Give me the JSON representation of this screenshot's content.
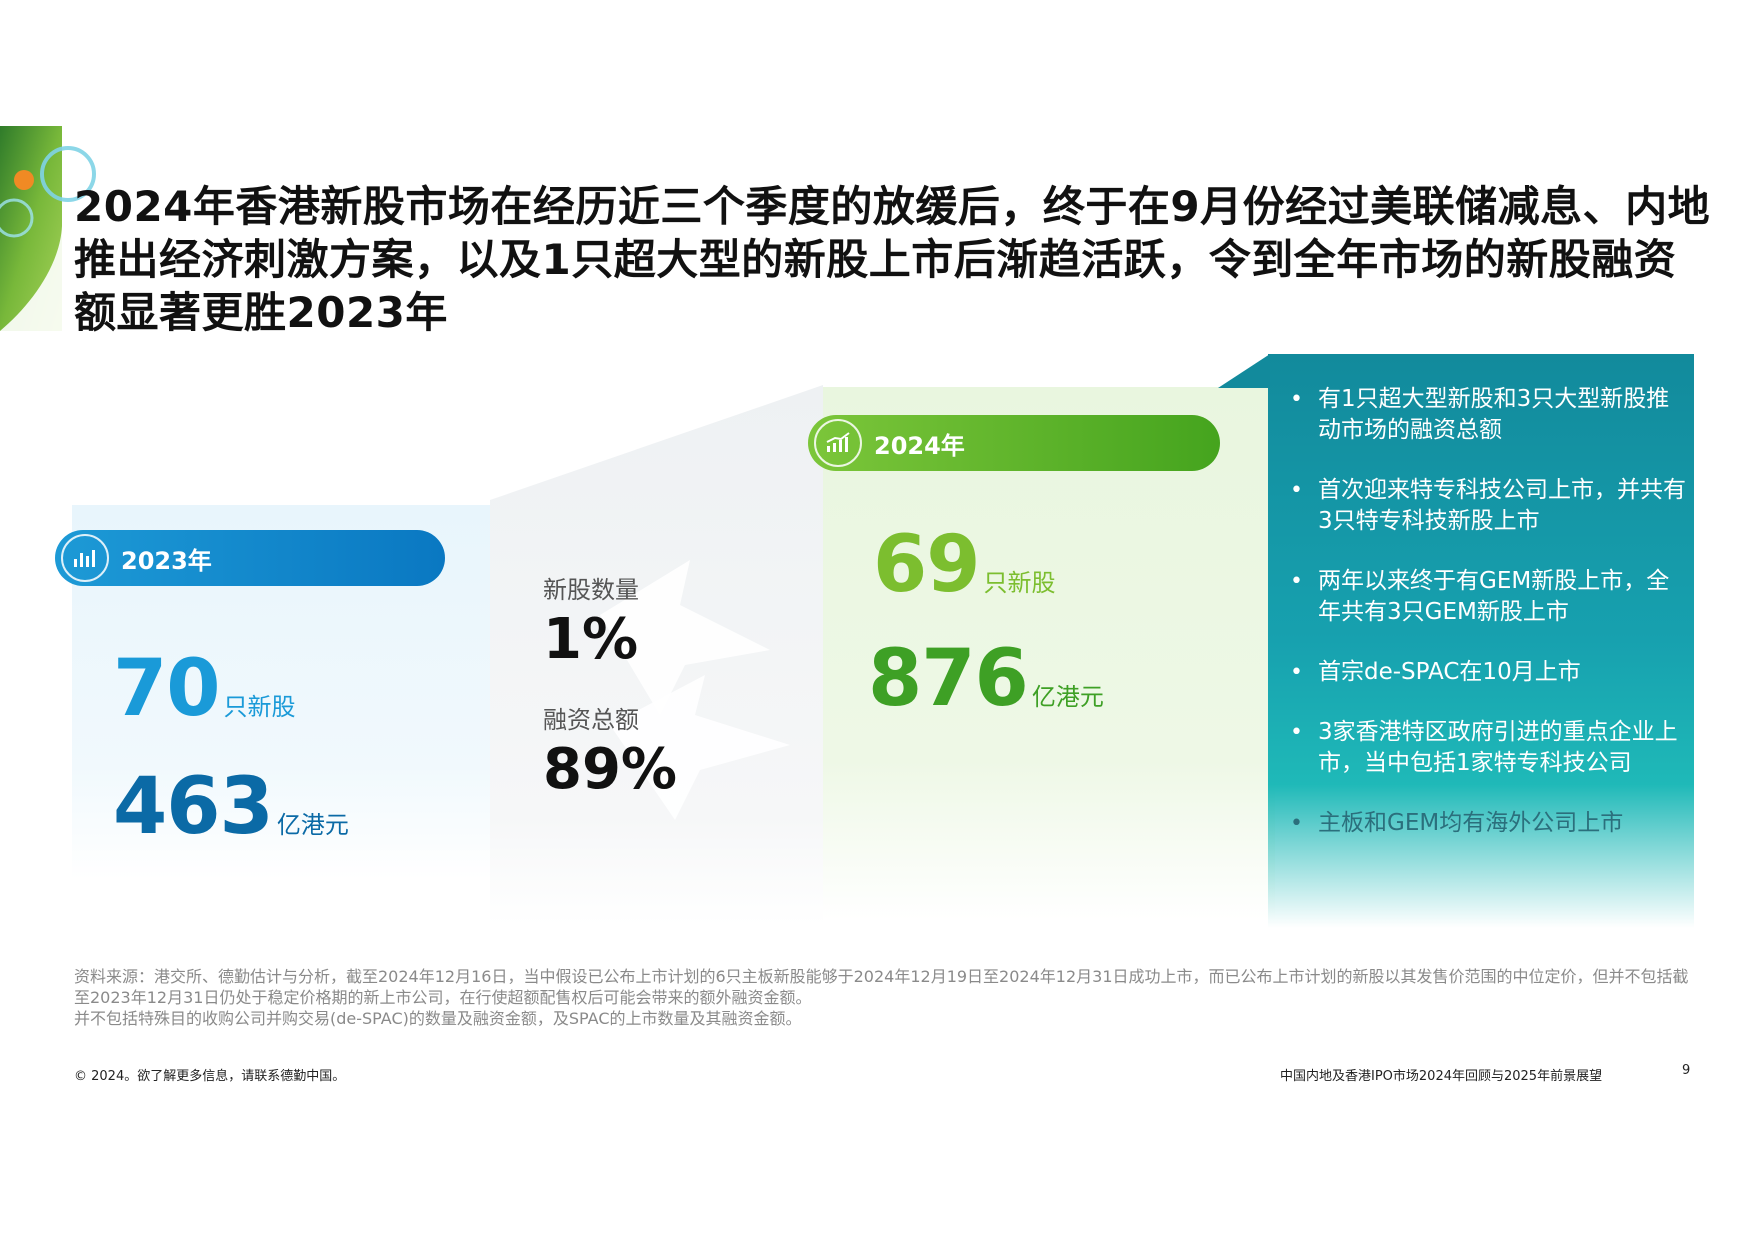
{
  "title": "2024年香港新股市场在经历近三个季度的放缓后，终于在9月份经过美联储减息、内地推出经济刺激方案，以及1只超大型的新股上市后渐趋活跃，令到全年市场的新股融资额显著更胜2023年",
  "year_2023": {
    "label": "2023年",
    "ipo_count": "70",
    "ipo_count_unit": "只新股",
    "amount": "463",
    "amount_unit": "亿港元"
  },
  "year_2024": {
    "label": "2024年",
    "ipo_count": "69",
    "ipo_count_unit": "只新股",
    "amount": "876",
    "amount_unit": "亿港元"
  },
  "change": {
    "count_label": "新股数量",
    "count_value": "1%",
    "amount_label": "融资总额",
    "amount_value": "89%"
  },
  "highlights": [
    "有1只超大型新股和3只大型新股推动市场的融资总额",
    "首次迎来特专科技公司上市，并共有3只特专科技新股上市",
    "两年以来终于有GEM新股上市，全年共有3只GEM新股上市",
    "首宗de-SPAC在10月上市",
    "3家香港特区政府引进的重点企业上市，当中包括1家特专科技公司",
    "主板和GEM均有海外公司上市"
  ],
  "footnote": [
    "资料来源：港交所、德勤估计与分析，截至2024年12月16日，当中假设已公布上市计划的6只主板新股能够于2024年12月19日至2024年12月31日成功上市，而已公布上市计划的新股以其发售价范围的中位定价，但并不包括截至2023年12月31日仍处于稳定价格期的新上市公司，在行使超额配售权后可能会带来的额外融资金额。",
    "并不包括特殊目的收购公司并购交易(de-SPAC)的数量及融资金额，及SPAC的上市数量及其融资金额。"
  ],
  "footer": {
    "copyright": "© 2024。欲了解更多信息，请联系德勤中国。",
    "report_title": "中国内地及香港IPO市场2024年回顾与2025年前景展望",
    "page_number": "9"
  },
  "colors": {
    "blue_primary": "#1a9ad8",
    "blue_dark": "#0b6aa6",
    "green_primary": "#7cbe2f",
    "green_dark": "#3ea025",
    "teal": "#17a1af"
  },
  "icons": {
    "year_2023": "bar-chart-icon",
    "year_2024": "growth-chart-icon"
  }
}
